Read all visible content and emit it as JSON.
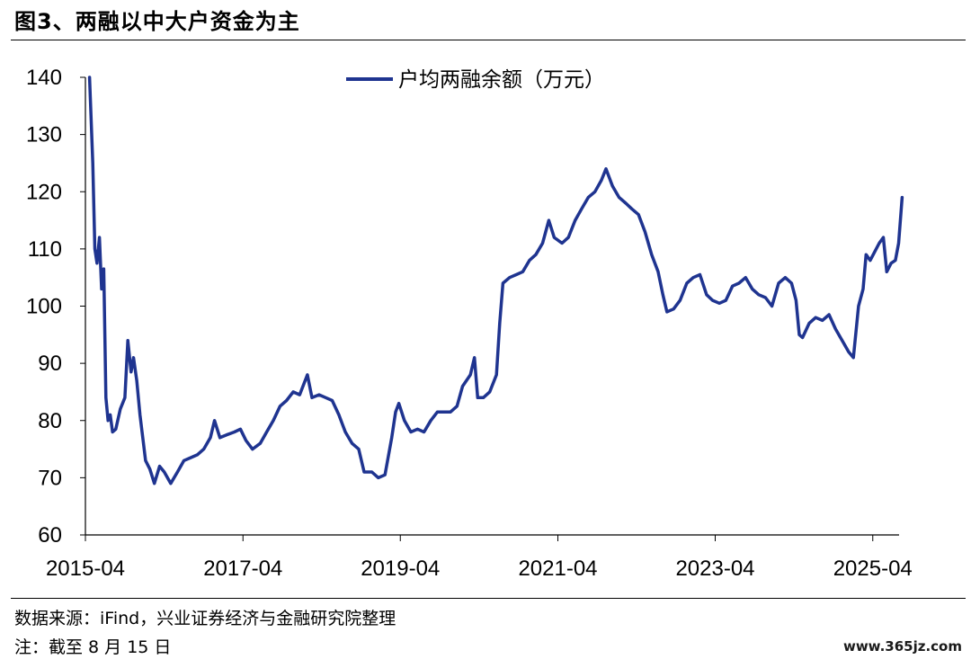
{
  "header": {
    "title": "图3、两融以中大户资金为主"
  },
  "footer": {
    "source": "数据来源：iFind，兴业证券经济与金融研究院整理",
    "note": "注：截至 8 月 15 日",
    "watermark": "www.365jz.com"
  },
  "chart_data": {
    "type": "line",
    "title": "",
    "xlabel": "",
    "ylabel": "",
    "ylim": [
      60,
      140
    ],
    "yticks": [
      60,
      70,
      80,
      90,
      100,
      110,
      120,
      130,
      140
    ],
    "xticks": [
      "2015-04",
      "2017-04",
      "2019-04",
      "2021-04",
      "2023-04",
      "2025-04"
    ],
    "xlim": [
      "2015-04",
      "2025-08"
    ],
    "grid": false,
    "legend_position": "top-center",
    "line_color": "#1f3490",
    "series": [
      {
        "name": "户均两融余额（万元）",
        "points": [
          [
            "2015-04-20",
            140
          ],
          [
            "2015-05-05",
            125
          ],
          [
            "2015-05-15",
            110
          ],
          [
            "2015-05-25",
            107.5
          ],
          [
            "2015-06-05",
            112
          ],
          [
            "2015-06-15",
            103
          ],
          [
            "2015-06-25",
            106.5
          ],
          [
            "2015-07-05",
            84
          ],
          [
            "2015-07-15",
            80
          ],
          [
            "2015-07-25",
            81
          ],
          [
            "2015-08-05",
            78
          ],
          [
            "2015-08-20",
            78.5
          ],
          [
            "2015-09-10",
            82
          ],
          [
            "2015-10-01",
            84
          ],
          [
            "2015-10-15",
            94
          ],
          [
            "2015-10-30",
            88.5
          ],
          [
            "2015-11-10",
            91
          ],
          [
            "2015-11-25",
            87
          ],
          [
            "2015-12-10",
            81
          ],
          [
            "2016-01-05",
            73
          ],
          [
            "2016-01-25",
            71.5
          ],
          [
            "2016-02-15",
            69
          ],
          [
            "2016-03-10",
            72
          ],
          [
            "2016-04-01",
            71
          ],
          [
            "2016-05-01",
            69
          ],
          [
            "2016-06-01",
            71
          ],
          [
            "2016-07-01",
            73
          ],
          [
            "2016-08-01",
            73.5
          ],
          [
            "2016-09-01",
            74
          ],
          [
            "2016-10-01",
            75
          ],
          [
            "2016-11-01",
            77
          ],
          [
            "2016-11-20",
            80
          ],
          [
            "2016-12-15",
            77
          ],
          [
            "2017-01-15",
            77.5
          ],
          [
            "2017-02-20",
            78
          ],
          [
            "2017-03-20",
            78.5
          ],
          [
            "2017-04-15",
            76.5
          ],
          [
            "2017-05-15",
            75
          ],
          [
            "2017-06-20",
            76
          ],
          [
            "2017-07-20",
            78
          ],
          [
            "2017-08-20",
            80
          ],
          [
            "2017-09-20",
            82.5
          ],
          [
            "2017-10-20",
            83.5
          ],
          [
            "2017-11-20",
            85
          ],
          [
            "2017-12-20",
            84.5
          ],
          [
            "2018-01-25",
            88
          ],
          [
            "2018-02-15",
            84
          ],
          [
            "2018-03-20",
            84.5
          ],
          [
            "2018-04-20",
            84
          ],
          [
            "2018-05-20",
            83.5
          ],
          [
            "2018-06-20",
            81
          ],
          [
            "2018-07-20",
            78
          ],
          [
            "2018-08-20",
            76
          ],
          [
            "2018-09-20",
            75
          ],
          [
            "2018-10-15",
            71
          ],
          [
            "2018-11-20",
            71
          ],
          [
            "2018-12-20",
            70
          ],
          [
            "2019-01-20",
            70.5
          ],
          [
            "2019-02-20",
            77
          ],
          [
            "2019-03-10",
            81.5
          ],
          [
            "2019-03-25",
            83
          ],
          [
            "2019-04-20",
            80
          ],
          [
            "2019-05-20",
            78
          ],
          [
            "2019-06-20",
            78.5
          ],
          [
            "2019-07-20",
            78
          ],
          [
            "2019-08-20",
            80
          ],
          [
            "2019-09-20",
            81.5
          ],
          [
            "2019-10-20",
            81.5
          ],
          [
            "2019-11-20",
            81.5
          ],
          [
            "2019-12-20",
            82.5
          ],
          [
            "2020-01-15",
            86
          ],
          [
            "2020-02-20",
            88
          ],
          [
            "2020-03-10",
            91
          ],
          [
            "2020-03-25",
            84
          ],
          [
            "2020-04-20",
            84
          ],
          [
            "2020-05-20",
            85
          ],
          [
            "2020-06-20",
            88
          ],
          [
            "2020-07-05",
            97
          ],
          [
            "2020-07-20",
            104
          ],
          [
            "2020-08-20",
            105
          ],
          [
            "2020-09-20",
            105.5
          ],
          [
            "2020-10-20",
            106
          ],
          [
            "2020-11-20",
            108
          ],
          [
            "2020-12-20",
            109
          ],
          [
            "2021-01-20",
            111
          ],
          [
            "2021-02-18",
            115
          ],
          [
            "2021-03-15",
            112
          ],
          [
            "2021-04-20",
            111
          ],
          [
            "2021-05-20",
            112
          ],
          [
            "2021-06-20",
            115
          ],
          [
            "2021-07-20",
            117
          ],
          [
            "2021-08-20",
            119
          ],
          [
            "2021-09-20",
            120
          ],
          [
            "2021-10-20",
            122
          ],
          [
            "2021-11-10",
            124
          ],
          [
            "2021-12-10",
            121
          ],
          [
            "2022-01-10",
            119
          ],
          [
            "2022-02-10",
            118
          ],
          [
            "2022-03-10",
            117
          ],
          [
            "2022-04-10",
            116
          ],
          [
            "2022-05-10",
            113
          ],
          [
            "2022-06-10",
            109
          ],
          [
            "2022-07-10",
            106
          ],
          [
            "2022-08-01",
            102
          ],
          [
            "2022-08-20",
            99
          ],
          [
            "2022-09-20",
            99.5
          ],
          [
            "2022-10-20",
            101
          ],
          [
            "2022-11-20",
            104
          ],
          [
            "2022-12-20",
            105
          ],
          [
            "2023-01-20",
            105.5
          ],
          [
            "2023-02-20",
            102
          ],
          [
            "2023-03-20",
            101
          ],
          [
            "2023-04-20",
            100.5
          ],
          [
            "2023-05-20",
            101
          ],
          [
            "2023-06-20",
            103.5
          ],
          [
            "2023-07-20",
            104
          ],
          [
            "2023-08-20",
            105
          ],
          [
            "2023-09-20",
            103
          ],
          [
            "2023-10-20",
            102
          ],
          [
            "2023-11-20",
            101.5
          ],
          [
            "2023-12-20",
            100
          ],
          [
            "2024-01-20",
            104
          ],
          [
            "2024-02-20",
            105
          ],
          [
            "2024-03-20",
            104
          ],
          [
            "2024-04-10",
            101
          ],
          [
            "2024-04-25",
            95
          ],
          [
            "2024-05-10",
            94.5
          ],
          [
            "2024-06-10",
            97
          ],
          [
            "2024-07-10",
            98
          ],
          [
            "2024-08-10",
            97.5
          ],
          [
            "2024-09-10",
            98.5
          ],
          [
            "2024-10-10",
            96
          ],
          [
            "2024-11-10",
            94
          ],
          [
            "2024-12-10",
            92
          ],
          [
            "2025-01-01",
            91
          ],
          [
            "2025-01-25",
            100
          ],
          [
            "2025-02-15",
            103
          ],
          [
            "2025-03-01",
            109
          ],
          [
            "2025-03-20",
            108
          ],
          [
            "2025-04-10",
            109.5
          ],
          [
            "2025-05-01",
            111
          ],
          [
            "2025-05-20",
            112
          ],
          [
            "2025-06-05",
            106
          ],
          [
            "2025-06-25",
            107.5
          ],
          [
            "2025-07-15",
            108
          ],
          [
            "2025-07-30",
            111
          ],
          [
            "2025-08-15",
            119
          ]
        ]
      }
    ]
  }
}
